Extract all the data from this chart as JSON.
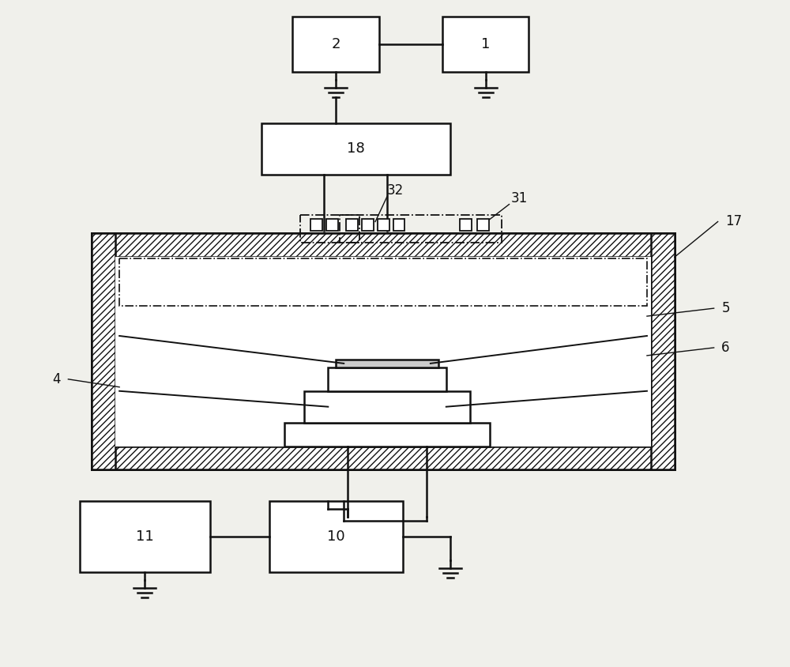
{
  "bg_color": "#f0f0eb",
  "line_color": "#111111",
  "figsize": [
    10.0,
    8.44
  ],
  "labels": {
    "box1": "1",
    "box2": "2",
    "box18": "18",
    "box10": "10",
    "box11": "11",
    "label4": "4",
    "label5": "5",
    "label6": "6",
    "label17": "17",
    "label31": "31",
    "label32": "32"
  }
}
